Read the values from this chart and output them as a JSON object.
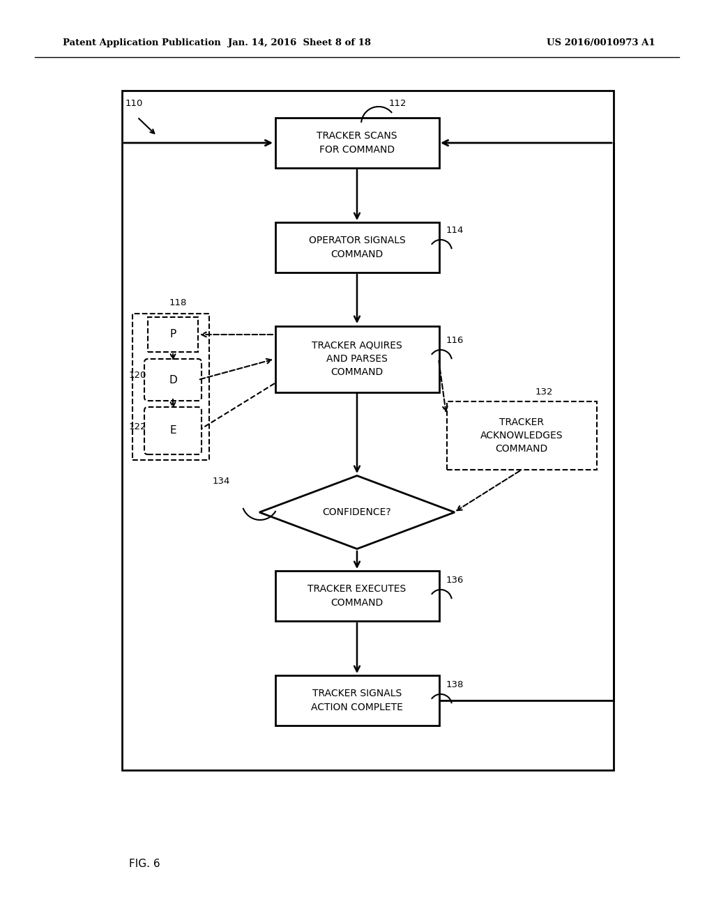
{
  "bg_color": "#ffffff",
  "header_left": "Patent Application Publication",
  "header_mid": "Jan. 14, 2016  Sheet 8 of 18",
  "header_right": "US 2016/0010973 A1",
  "figure_label": "FIG. 6"
}
